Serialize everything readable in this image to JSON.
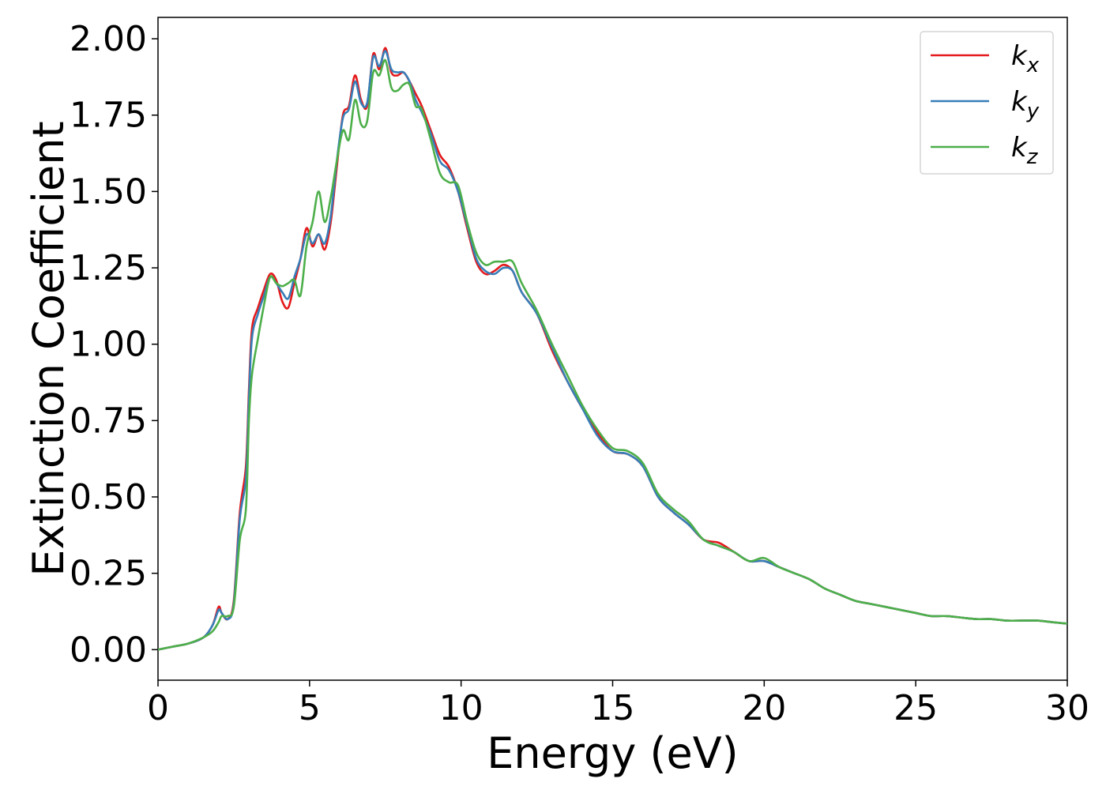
{
  "chart_data": {
    "type": "line",
    "xlabel": "Energy (eV)",
    "ylabel": "Extinction Coefficient",
    "xlim": [
      0,
      30
    ],
    "ylim": [
      -0.1,
      2.07
    ],
    "x_ticks": [
      0,
      5,
      10,
      15,
      20,
      25,
      30
    ],
    "y_ticks": [
      "0.00",
      "0.25",
      "0.50",
      "0.75",
      "1.00",
      "1.25",
      "1.50",
      "1.75",
      "2.00"
    ],
    "grid": false,
    "legend_position": "top-right",
    "series": [
      {
        "name": "k_x",
        "label_main": "k",
        "label_sub": "x",
        "color": "#e41a1c",
        "x": [
          0,
          0.5,
          1,
          1.5,
          1.8,
          2.0,
          2.1,
          2.3,
          2.5,
          2.7,
          2.9,
          3.0,
          3.1,
          3.3,
          3.5,
          3.7,
          3.9,
          4.1,
          4.3,
          4.5,
          4.7,
          4.9,
          5.1,
          5.3,
          5.5,
          5.7,
          5.9,
          6.1,
          6.3,
          6.5,
          6.7,
          6.9,
          7.1,
          7.3,
          7.5,
          7.7,
          7.9,
          8.1,
          8.3,
          8.5,
          8.7,
          9.0,
          9.3,
          9.6,
          9.9,
          10.2,
          10.5,
          10.8,
          11.1,
          11.4,
          11.7,
          12.0,
          12.5,
          13.0,
          13.5,
          14.0,
          14.5,
          15.0,
          15.5,
          16.0,
          16.5,
          17.0,
          17.5,
          18.0,
          18.5,
          19.0,
          19.5,
          20.0,
          20.5,
          21.0,
          21.5,
          22.0,
          22.5,
          23.0,
          23.5,
          24.0,
          24.5,
          25.0,
          25.5,
          26.0,
          26.5,
          27.0,
          27.5,
          28.0,
          28.5,
          29.0,
          29.5,
          30.0
        ],
        "y": [
          0.0,
          0.01,
          0.02,
          0.04,
          0.08,
          0.14,
          0.12,
          0.1,
          0.16,
          0.45,
          0.6,
          0.85,
          1.05,
          1.12,
          1.18,
          1.23,
          1.21,
          1.14,
          1.12,
          1.2,
          1.28,
          1.38,
          1.32,
          1.36,
          1.31,
          1.4,
          1.58,
          1.75,
          1.78,
          1.88,
          1.8,
          1.78,
          1.95,
          1.9,
          1.97,
          1.89,
          1.88,
          1.89,
          1.86,
          1.82,
          1.78,
          1.7,
          1.62,
          1.58,
          1.5,
          1.38,
          1.27,
          1.23,
          1.24,
          1.26,
          1.24,
          1.17,
          1.1,
          0.98,
          0.88,
          0.79,
          0.71,
          0.65,
          0.64,
          0.6,
          0.5,
          0.45,
          0.41,
          0.36,
          0.35,
          0.32,
          0.29,
          0.29,
          0.27,
          0.25,
          0.23,
          0.2,
          0.18,
          0.16,
          0.15,
          0.14,
          0.13,
          0.12,
          0.11,
          0.11,
          0.105,
          0.1,
          0.1,
          0.095,
          0.095,
          0.095,
          0.09,
          0.085
        ]
      },
      {
        "name": "k_y",
        "label_main": "k",
        "label_sub": "y",
        "color": "#377eb8",
        "x": [
          0,
          0.5,
          1,
          1.5,
          1.8,
          2.0,
          2.1,
          2.3,
          2.5,
          2.7,
          2.9,
          3.0,
          3.1,
          3.3,
          3.5,
          3.7,
          3.9,
          4.1,
          4.3,
          4.5,
          4.7,
          4.9,
          5.1,
          5.3,
          5.5,
          5.7,
          5.9,
          6.1,
          6.3,
          6.5,
          6.7,
          6.9,
          7.1,
          7.3,
          7.5,
          7.7,
          7.9,
          8.1,
          8.3,
          8.5,
          8.7,
          9.0,
          9.3,
          9.6,
          9.9,
          10.2,
          10.5,
          10.8,
          11.1,
          11.4,
          11.7,
          12.0,
          12.5,
          13.0,
          13.5,
          14.0,
          14.5,
          15.0,
          15.5,
          16.0,
          16.5,
          17.0,
          17.5,
          18.0,
          18.5,
          19.0,
          19.5,
          20.0,
          20.5,
          21.0,
          21.5,
          22.0,
          22.5,
          23.0,
          23.5,
          24.0,
          24.5,
          25.0,
          25.5,
          26.0,
          26.5,
          27.0,
          27.5,
          28.0,
          28.5,
          29.0,
          29.5,
          30.0
        ],
        "y": [
          0.0,
          0.01,
          0.02,
          0.04,
          0.08,
          0.13,
          0.12,
          0.1,
          0.15,
          0.43,
          0.56,
          0.82,
          1.02,
          1.1,
          1.16,
          1.22,
          1.2,
          1.17,
          1.15,
          1.22,
          1.28,
          1.36,
          1.33,
          1.36,
          1.33,
          1.42,
          1.6,
          1.74,
          1.77,
          1.86,
          1.79,
          1.79,
          1.94,
          1.91,
          1.96,
          1.9,
          1.89,
          1.89,
          1.86,
          1.8,
          1.76,
          1.69,
          1.6,
          1.57,
          1.5,
          1.39,
          1.28,
          1.24,
          1.23,
          1.25,
          1.24,
          1.17,
          1.1,
          0.99,
          0.88,
          0.79,
          0.7,
          0.65,
          0.64,
          0.6,
          0.5,
          0.45,
          0.41,
          0.36,
          0.34,
          0.32,
          0.29,
          0.29,
          0.27,
          0.25,
          0.23,
          0.2,
          0.18,
          0.16,
          0.15,
          0.14,
          0.13,
          0.12,
          0.11,
          0.11,
          0.105,
          0.1,
          0.1,
          0.095,
          0.095,
          0.095,
          0.09,
          0.085
        ]
      },
      {
        "name": "k_z",
        "label_main": "k",
        "label_sub": "z",
        "color": "#4daf4a",
        "x": [
          0,
          0.5,
          1,
          1.5,
          1.8,
          2.0,
          2.1,
          2.3,
          2.5,
          2.7,
          2.9,
          3.0,
          3.1,
          3.3,
          3.5,
          3.7,
          3.9,
          4.1,
          4.3,
          4.5,
          4.7,
          4.9,
          5.1,
          5.3,
          5.5,
          5.7,
          5.9,
          6.1,
          6.3,
          6.5,
          6.7,
          6.9,
          7.1,
          7.3,
          7.5,
          7.7,
          7.9,
          8.1,
          8.3,
          8.5,
          8.7,
          9.0,
          9.3,
          9.6,
          9.9,
          10.2,
          10.5,
          10.8,
          11.1,
          11.4,
          11.7,
          12.0,
          12.5,
          13.0,
          13.5,
          14.0,
          14.5,
          15.0,
          15.5,
          16.0,
          16.5,
          17.0,
          17.5,
          18.0,
          18.5,
          19.0,
          19.5,
          20.0,
          20.5,
          21.0,
          21.5,
          22.0,
          22.5,
          23.0,
          23.5,
          24.0,
          24.5,
          25.0,
          25.5,
          26.0,
          26.5,
          27.0,
          27.5,
          28.0,
          28.5,
          29.0,
          29.5,
          30.0
        ],
        "y": [
          0.0,
          0.01,
          0.02,
          0.04,
          0.06,
          0.09,
          0.11,
          0.11,
          0.14,
          0.36,
          0.46,
          0.75,
          0.9,
          1.02,
          1.13,
          1.22,
          1.2,
          1.19,
          1.2,
          1.21,
          1.16,
          1.32,
          1.4,
          1.5,
          1.4,
          1.48,
          1.6,
          1.7,
          1.67,
          1.8,
          1.72,
          1.73,
          1.89,
          1.88,
          1.93,
          1.84,
          1.83,
          1.85,
          1.85,
          1.78,
          1.77,
          1.67,
          1.56,
          1.53,
          1.52,
          1.4,
          1.3,
          1.26,
          1.27,
          1.27,
          1.27,
          1.2,
          1.11,
          1.0,
          0.9,
          0.8,
          0.72,
          0.66,
          0.65,
          0.61,
          0.51,
          0.46,
          0.42,
          0.36,
          0.34,
          0.32,
          0.29,
          0.3,
          0.27,
          0.25,
          0.23,
          0.2,
          0.18,
          0.16,
          0.15,
          0.14,
          0.13,
          0.12,
          0.11,
          0.11,
          0.105,
          0.1,
          0.1,
          0.095,
          0.095,
          0.095,
          0.09,
          0.085
        ]
      }
    ]
  }
}
